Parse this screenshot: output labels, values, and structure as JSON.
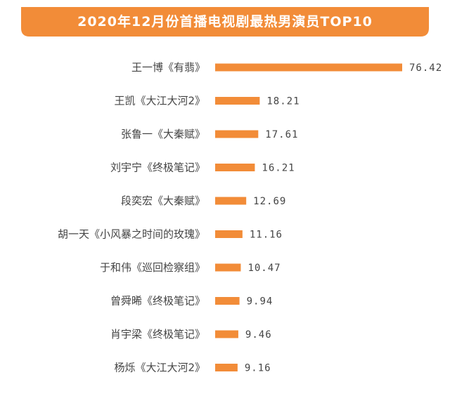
{
  "chart_data": {
    "type": "bar",
    "orientation": "horizontal",
    "title": "2020年12月份首播电视剧最热男演员TOP10",
    "categories": [
      "王一博《有翡》",
      "王凯《大江大河2》",
      "张鲁一《大秦赋》",
      "刘宇宁《终极笔记》",
      "段奕宏《大秦赋》",
      "胡一天《小风暴之时间的玫瑰》",
      "于和伟《巡回检察组》",
      "曾舜晞《终极笔记》",
      "肖宇梁《终极笔记》",
      "杨烁《大江大河2》"
    ],
    "values": [
      76.42,
      18.21,
      17.61,
      16.21,
      12.69,
      11.16,
      10.47,
      9.94,
      9.46,
      9.16
    ],
    "value_labels": [
      "76.42",
      "18.21",
      "17.61",
      "16.21",
      "12.69",
      "11.16",
      "10.47",
      "9.94",
      "9.46",
      "9.16"
    ],
    "bar_color": "#F28C38",
    "banner_color": "#F28C38",
    "grid": false,
    "legend": "none"
  }
}
